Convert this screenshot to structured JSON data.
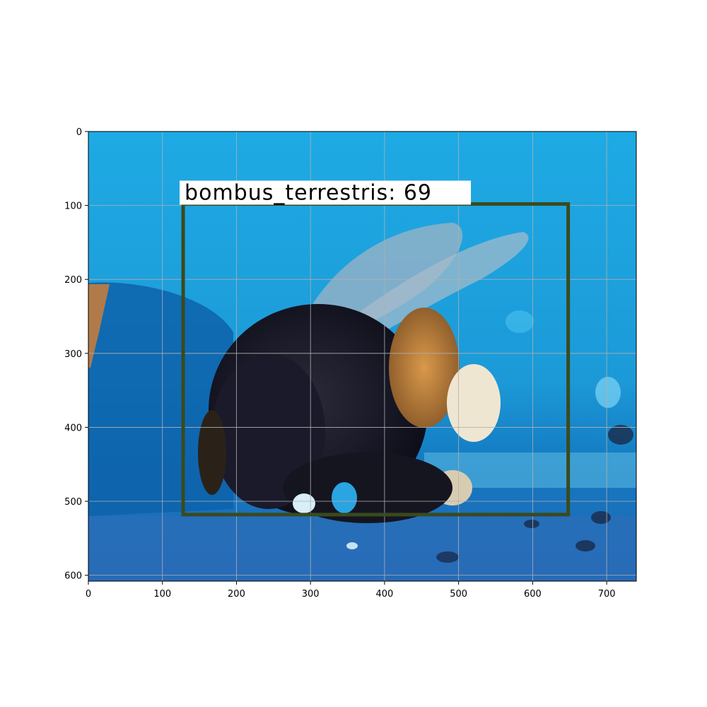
{
  "figure": {
    "background": "#ffffff",
    "image_extent": {
      "x": [
        0,
        740
      ],
      "y": [
        0,
        608
      ]
    },
    "grid": true,
    "x_ticks": [
      "0",
      "100",
      "200",
      "300",
      "400",
      "500",
      "600",
      "700"
    ],
    "y_ticks": [
      "0",
      "100",
      "200",
      "300",
      "400",
      "500",
      "600"
    ],
    "photo": {
      "subject": "bumblebee on a blue painted surface",
      "colors": {
        "sky_blue": "#1aa3e0",
        "deep_blue": "#0b5fa8",
        "bee_black": "#141420",
        "bee_orange": "#c98a3a",
        "bee_white": "#efe6d2",
        "wing": "#9fb3c4"
      }
    }
  },
  "detection": {
    "label": "bombus_terrestris: 69",
    "box": {
      "x1": 128,
      "y1": 98,
      "x2": 648,
      "y2": 518
    },
    "box_color": "#3a4a1e",
    "label_bg": "#ffffff",
    "label_color": "#000000"
  }
}
